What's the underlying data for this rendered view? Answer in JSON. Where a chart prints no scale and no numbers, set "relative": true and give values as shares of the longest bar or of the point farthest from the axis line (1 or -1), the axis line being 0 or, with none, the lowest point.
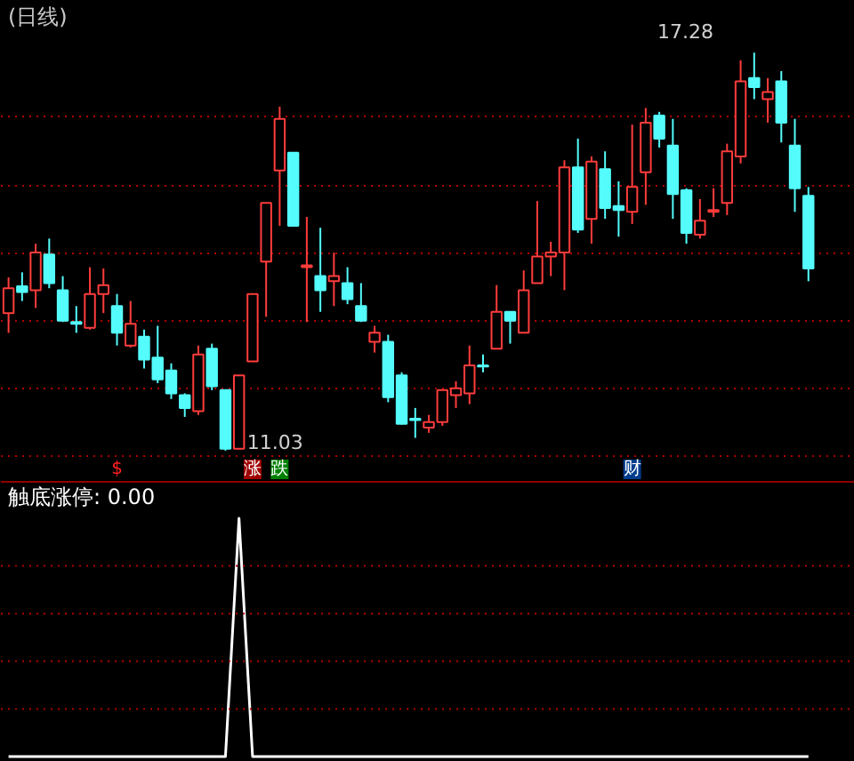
{
  "chart_data": [
    {
      "type": "candlestick",
      "title": "(日线)",
      "tick_labels": false,
      "grid": "y",
      "yticks": [
        {
          "value": 16.27,
          "label": null
        },
        {
          "value": 15.2,
          "label": null
        },
        {
          "value": 14.14,
          "label": null
        },
        {
          "value": 13.07,
          "label": null
        },
        {
          "value": 12.01,
          "label": null
        },
        {
          "value": 10.95,
          "label": null
        }
      ],
      "categories": [
        null,
        null,
        null,
        null,
        null,
        null,
        null,
        null,
        null,
        null,
        null,
        null,
        null,
        null,
        null,
        null,
        null,
        null,
        null,
        null,
        null,
        null,
        null,
        null,
        null,
        null,
        null,
        null,
        null,
        null,
        null,
        null,
        null,
        null,
        null,
        null,
        null,
        null,
        null,
        null,
        null,
        null,
        null,
        null,
        null,
        null,
        null,
        null,
        null,
        null,
        null,
        null,
        null,
        null,
        null,
        null,
        null,
        null,
        null,
        null
      ],
      "ohlc": [
        [
          13.19,
          13.75,
          12.88,
          13.58
        ],
        [
          13.61,
          13.83,
          13.38,
          13.52
        ],
        [
          13.55,
          14.28,
          13.27,
          14.14
        ],
        [
          14.11,
          14.36,
          13.58,
          13.66
        ],
        [
          13.55,
          13.77,
          13.05,
          13.07
        ],
        [
          13.05,
          13.3,
          12.88,
          13.02
        ],
        [
          12.96,
          13.91,
          12.93,
          13.49
        ],
        [
          13.49,
          13.89,
          13.19,
          13.63
        ],
        [
          13.3,
          13.49,
          12.68,
          12.88
        ],
        [
          12.68,
          13.38,
          12.65,
          13.02
        ],
        [
          12.82,
          12.93,
          12.32,
          12.46
        ],
        [
          12.49,
          12.99,
          12.09,
          12.15
        ],
        [
          12.29,
          12.4,
          11.84,
          11.93
        ],
        [
          11.9,
          11.93,
          11.56,
          11.7
        ],
        [
          11.65,
          12.68,
          11.59,
          12.54
        ],
        [
          12.63,
          12.71,
          11.98,
          12.04
        ],
        [
          11.98,
          11.98,
          11.03,
          11.06
        ],
        [
          11.06,
          12.21,
          11.05,
          12.21
        ],
        [
          12.43,
          13.49,
          12.43,
          13.49
        ],
        [
          14.0,
          14.92,
          13.13,
          14.92
        ],
        [
          15.43,
          16.43,
          14.56,
          16.24
        ],
        [
          15.71,
          15.71,
          14.56,
          14.56
        ],
        [
          13.91,
          14.7,
          13.05,
          13.94
        ],
        [
          13.77,
          14.53,
          13.21,
          13.55
        ],
        [
          13.69,
          14.14,
          13.3,
          13.77
        ],
        [
          13.66,
          13.91,
          13.33,
          13.41
        ],
        [
          13.3,
          13.66,
          13.05,
          13.07
        ],
        [
          12.74,
          12.99,
          12.57,
          12.88
        ],
        [
          12.74,
          12.85,
          11.79,
          11.87
        ],
        [
          12.21,
          12.26,
          11.44,
          11.45
        ],
        [
          11.53,
          11.7,
          11.23,
          11.51
        ],
        [
          11.39,
          11.59,
          11.31,
          11.48
        ],
        [
          11.48,
          11.98,
          11.42,
          11.98
        ],
        [
          11.9,
          12.12,
          11.7,
          12.01
        ],
        [
          11.93,
          12.68,
          11.76,
          12.37
        ],
        [
          12.37,
          12.54,
          12.26,
          12.35
        ],
        [
          12.63,
          13.63,
          12.63,
          13.21
        ],
        [
          13.21,
          13.21,
          12.71,
          13.07
        ],
        [
          12.88,
          13.86,
          12.88,
          13.55
        ],
        [
          13.66,
          14.95,
          13.66,
          14.08
        ],
        [
          14.08,
          14.31,
          13.77,
          14.14
        ],
        [
          14.14,
          15.59,
          13.55,
          15.48
        ],
        [
          15.48,
          15.93,
          14.45,
          14.5
        ],
        [
          14.67,
          15.65,
          14.28,
          15.57
        ],
        [
          15.45,
          15.73,
          14.67,
          14.84
        ],
        [
          14.87,
          15.26,
          14.39,
          14.81
        ],
        [
          14.78,
          16.15,
          14.59,
          15.17
        ],
        [
          15.4,
          16.41,
          14.89,
          16.18
        ],
        [
          16.29,
          16.35,
          15.79,
          15.93
        ],
        [
          15.82,
          16.24,
          14.67,
          15.06
        ],
        [
          15.12,
          15.15,
          14.28,
          14.45
        ],
        [
          14.42,
          14.98,
          14.36,
          14.64
        ],
        [
          14.78,
          15.15,
          14.7,
          14.81
        ],
        [
          14.92,
          15.85,
          14.73,
          15.73
        ],
        [
          15.65,
          17.16,
          15.54,
          16.83
        ],
        [
          16.88,
          17.28,
          16.55,
          16.74
        ],
        [
          16.55,
          16.88,
          16.18,
          16.66
        ],
        [
          16.83,
          16.99,
          15.87,
          16.18
        ],
        [
          15.82,
          16.24,
          14.78,
          15.15
        ],
        [
          15.03,
          15.17,
          13.69,
          13.89
        ]
      ],
      "annotations": [
        "17.28",
        "11.03",
        "$",
        "涨",
        "跌",
        "财"
      ]
    },
    {
      "type": "line",
      "title": "触底涨停: 0.00",
      "relative": true,
      "tick_labels": false,
      "ref_lines": [
        {
          "axis": "y",
          "value": 0.8,
          "color": "#b00000",
          "line_style": "dotted"
        },
        {
          "axis": "y",
          "value": 0.6,
          "color": "#b00000",
          "line_style": "dotted"
        },
        {
          "axis": "y",
          "value": 0.4,
          "color": "#b00000",
          "line_style": "dotted"
        },
        {
          "axis": "y",
          "value": 0.2,
          "color": "#b00000",
          "line_style": "dotted"
        }
      ],
      "categories": [
        null,
        null,
        null,
        null,
        null,
        null,
        null,
        null,
        null,
        null,
        null,
        null,
        null,
        null,
        null,
        null,
        null,
        null,
        null,
        null,
        null,
        null,
        null,
        null,
        null,
        null,
        null,
        null,
        null,
        null,
        null,
        null,
        null,
        null,
        null,
        null,
        null,
        null,
        null,
        null,
        null,
        null,
        null,
        null,
        null,
        null,
        null,
        null,
        null,
        null,
        null,
        null,
        null,
        null,
        null,
        null,
        null,
        null,
        null,
        null
      ],
      "series": [
        {
          "color": "#ffffff",
          "values": [
            0,
            0,
            0,
            0,
            0,
            0,
            0,
            0,
            0,
            0,
            0,
            0,
            0,
            0,
            0,
            0,
            0,
            1,
            0,
            0,
            0,
            0,
            0,
            0,
            0,
            0,
            0,
            0,
            0,
            0,
            0,
            0,
            0,
            0,
            0,
            0,
            0,
            0,
            0,
            0,
            0,
            0,
            0,
            0,
            0,
            0,
            0,
            0,
            0,
            0,
            0,
            0,
            0,
            0,
            0,
            0,
            0,
            0,
            0,
            0
          ]
        }
      ]
    }
  ]
}
